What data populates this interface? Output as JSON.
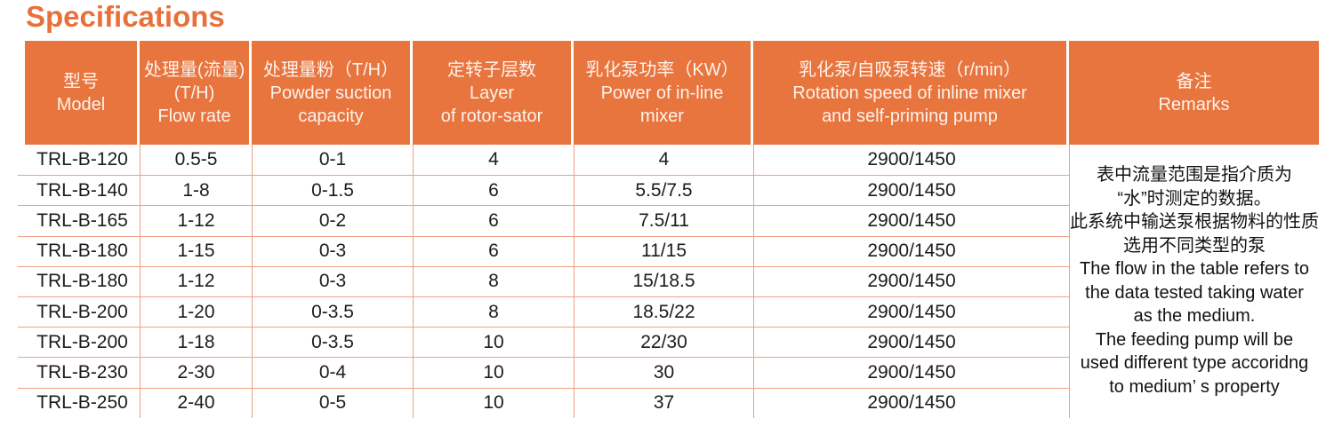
{
  "page_title": "Specifications",
  "colors": {
    "header_orange": "#E8743E",
    "title_orange": "#E8713B",
    "grid_line": "#EFA183",
    "header_text": "#FDF3EC",
    "body_text": "#1C1C1C"
  },
  "table": {
    "columns": [
      {
        "id": "model",
        "lines": [
          "型号",
          "Model"
        ]
      },
      {
        "id": "flow-rate",
        "lines": [
          "处理量(流量)",
          "(T/H)",
          "Flow rate"
        ]
      },
      {
        "id": "powder-capacity",
        "lines": [
          "处理量粉（T/H）",
          "Powder suction",
          "capacity"
        ]
      },
      {
        "id": "rotor-layers",
        "lines": [
          "定转子层数",
          "Layer",
          "of rotor-sator"
        ]
      },
      {
        "id": "mixer-power",
        "lines": [
          "乳化泵功率（KW）",
          "Power of in-line",
          "mixer"
        ]
      },
      {
        "id": "rotation-speed",
        "lines": [
          "乳化泵/自吸泵转速（r/min）",
          "Rotation speed of inline mixer",
          "and self-priming pump"
        ]
      },
      {
        "id": "remarks",
        "lines": [
          "备注",
          "Remarks"
        ]
      }
    ],
    "rows": [
      [
        "TRL-B-120",
        "0.5-5",
        "0-1",
        "4",
        "4",
        "2900/1450"
      ],
      [
        "TRL-B-140",
        "1-8",
        "0-1.5",
        "6",
        "5.5/7.5",
        "2900/1450"
      ],
      [
        "TRL-B-165",
        "1-12",
        "0-2",
        "6",
        "7.5/11",
        "2900/1450"
      ],
      [
        "TRL-B-180",
        "1-15",
        "0-3",
        "6",
        "11/15",
        "2900/1450"
      ],
      [
        "TRL-B-180",
        "1-12",
        "0-3",
        "8",
        "15/18.5",
        "2900/1450"
      ],
      [
        "TRL-B-200",
        "1-20",
        "0-3.5",
        "8",
        "18.5/22",
        "2900/1450"
      ],
      [
        "TRL-B-200",
        "1-18",
        "0-3.5",
        "10",
        "22/30",
        "2900/1450"
      ],
      [
        "TRL-B-230",
        "2-30",
        "0-4",
        "10",
        "30",
        "2900/1450"
      ],
      [
        "TRL-B-250",
        "2-40",
        "0-5",
        "10",
        "37",
        "2900/1450"
      ]
    ],
    "remarks_lines": [
      "表中流量范围是指介质为",
      "“水”时测定的数据。",
      "此系统中输送泵根据物料的性质",
      "选用不同类型的泵",
      "The flow in the table refers to",
      "the data tested taking water",
      "as the medium.",
      "The feeding pump will be",
      "used different type accoridng",
      "to medium’ s property"
    ]
  }
}
